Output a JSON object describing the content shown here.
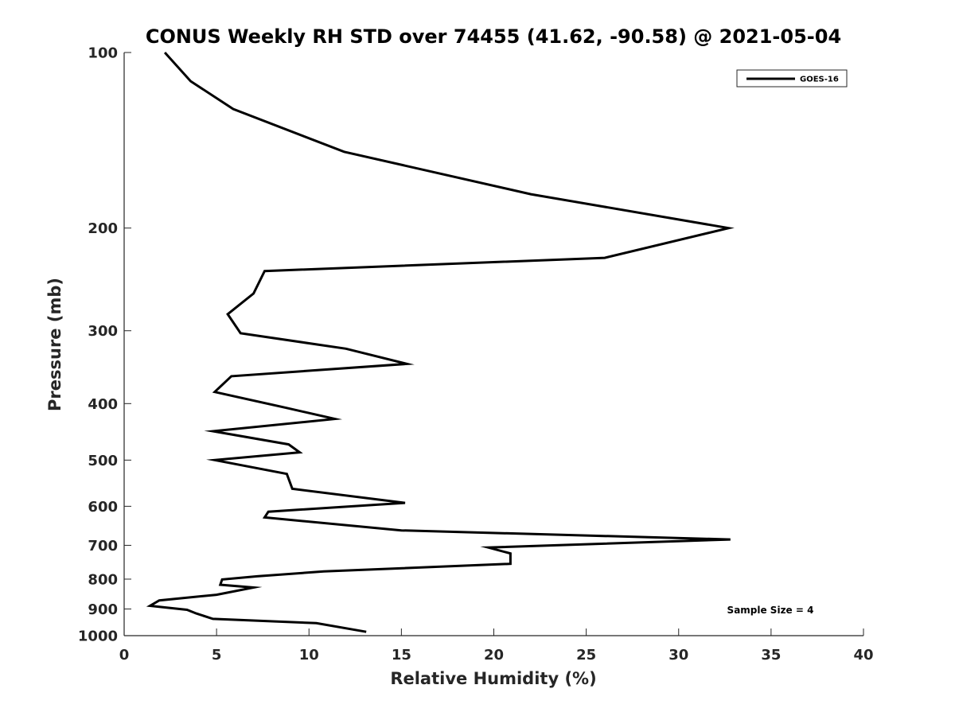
{
  "chart_data": {
    "type": "line",
    "title": "CONUS Weekly RH STD over 74455 (41.62, -90.58) @ 2021-05-04",
    "xlabel": "Relative Humidity (%)",
    "ylabel": "Pressure (mb)",
    "xlim": [
      0,
      40
    ],
    "ylim": [
      1000,
      100
    ],
    "y_scale": "log",
    "y_reversed": true,
    "xticks": [
      0,
      5,
      10,
      15,
      20,
      25,
      30,
      35,
      40
    ],
    "yticks": [
      100,
      200,
      300,
      400,
      500,
      600,
      700,
      800,
      900,
      1000
    ],
    "grid": false,
    "legend_position": "top-right",
    "annotation": "Sample Size = 4",
    "series": [
      {
        "name": "GOES-16",
        "color": "#000000",
        "x": [
          2.2,
          3.6,
          5.9,
          11.9,
          22.0,
          32.7,
          26.0,
          7.6,
          7.0,
          5.6,
          6.3,
          12.0,
          15.3,
          5.8,
          4.9,
          8.8,
          11.4,
          4.8,
          8.9,
          9.5,
          4.9,
          8.8,
          9.1,
          15.2,
          7.8,
          7.6,
          15.0,
          32.8,
          19.7,
          20.9,
          20.9,
          10.8,
          7.2,
          5.3,
          5.2,
          7.0,
          5.0,
          1.9,
          1.4,
          3.4,
          3.9,
          4.8,
          10.4,
          13.1
        ],
        "y": [
          100,
          112,
          125,
          148,
          175,
          200,
          225,
          237,
          259,
          281,
          303,
          322,
          342,
          359,
          382,
          407,
          425,
          446,
          470,
          485,
          500,
          528,
          560,
          592,
          613,
          627,
          660,
          684,
          706,
          723,
          753,
          776,
          791,
          801,
          818,
          827,
          851,
          870,
          889,
          903,
          916,
          936,
          952,
          985
        ]
      }
    ]
  }
}
